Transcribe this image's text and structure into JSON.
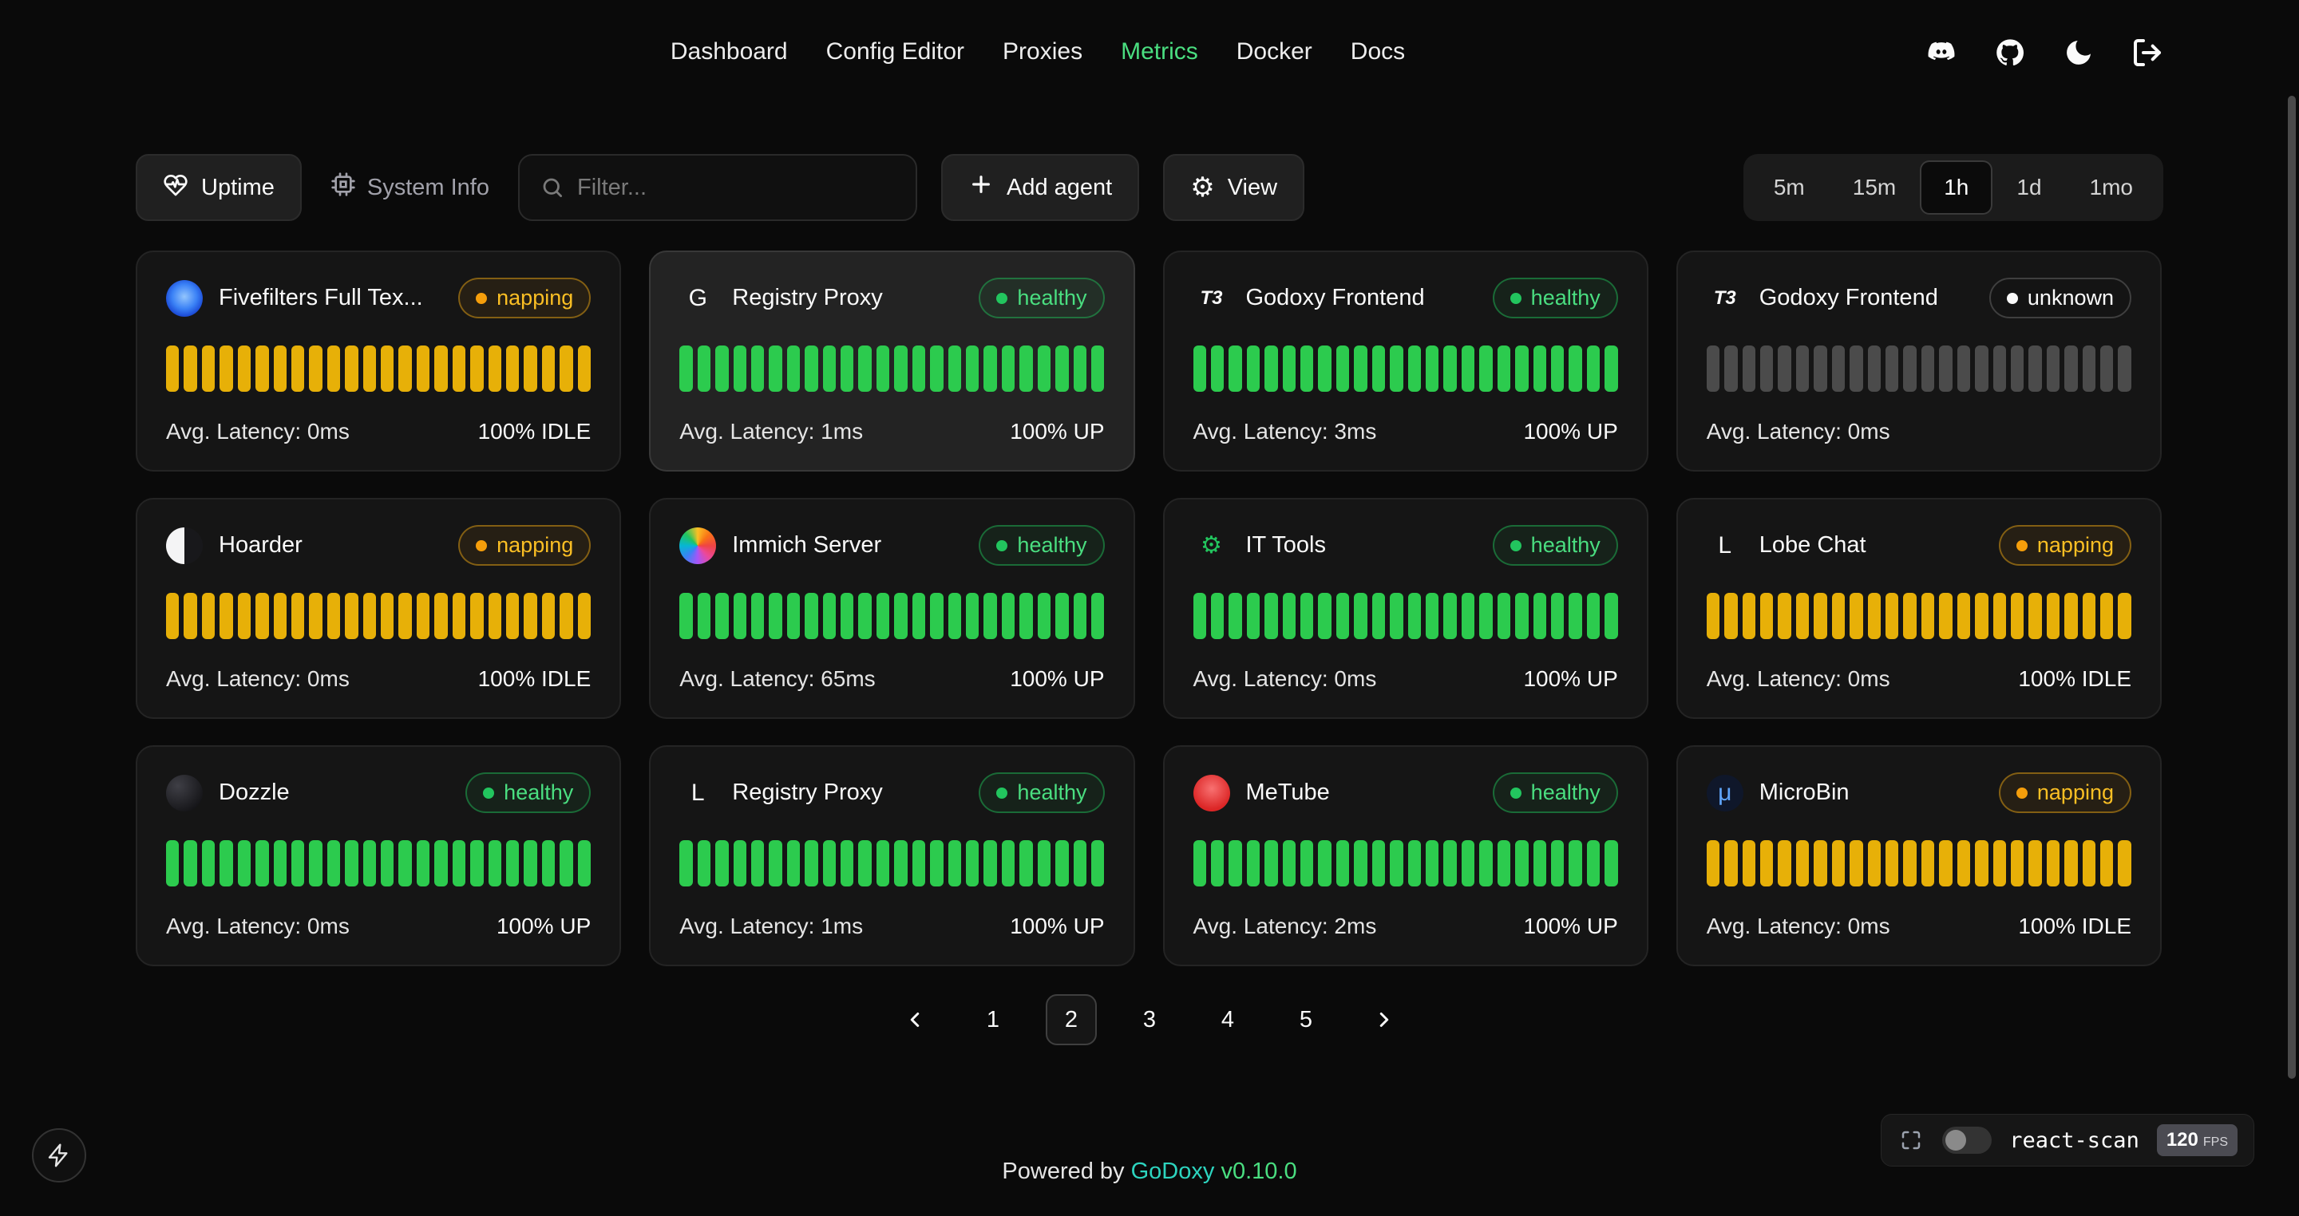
{
  "header": {
    "nav": [
      {
        "label": "Dashboard",
        "active": false
      },
      {
        "label": "Config Editor",
        "active": false
      },
      {
        "label": "Proxies",
        "active": false
      },
      {
        "label": "Metrics",
        "active": true
      },
      {
        "label": "Docker",
        "active": false
      },
      {
        "label": "Docs",
        "active": false
      }
    ]
  },
  "toolbar": {
    "uptime": "Uptime",
    "system_info": "System Info",
    "filter_placeholder": "Filter...",
    "add_agent": "Add agent",
    "view": "View",
    "time_ranges": [
      {
        "label": "5m",
        "active": false
      },
      {
        "label": "15m",
        "active": false
      },
      {
        "label": "1h",
        "active": true
      },
      {
        "label": "1d",
        "active": false
      },
      {
        "label": "1mo",
        "active": false
      }
    ]
  },
  "bar_count": 24,
  "cards": [
    {
      "name": "Fivefilters Full Tex...",
      "icon": {
        "name": "fivefilters-icon",
        "style": "radial-gradient(circle at 50% 45%, #93c5fd 0%, #3b82f6 45%, #1d4ed8 70%, #172554 100%)"
      },
      "status": "napping",
      "status_class": "napping",
      "latency": "Avg. Latency: 0ms",
      "uptime": "100% IDLE",
      "bar_color": "#e7b008",
      "highlight": false
    },
    {
      "name": "Registry Proxy",
      "icon": {
        "name": "registry-proxy-icon",
        "glyph": "G"
      },
      "status": "healthy",
      "status_class": "healthy",
      "latency": "Avg. Latency: 1ms",
      "uptime": "100% UP",
      "bar_color": "#2ccb4e",
      "highlight": true
    },
    {
      "name": "Godoxy Frontend",
      "icon": {
        "name": "godoxy-frontend-icon",
        "glyph": "T3",
        "small": true
      },
      "status": "healthy",
      "status_class": "healthy",
      "latency": "Avg. Latency: 3ms",
      "uptime": "100% UP",
      "bar_color": "#2ccb4e",
      "highlight": false
    },
    {
      "name": "Godoxy Frontend",
      "icon": {
        "name": "godoxy-frontend-icon",
        "glyph": "T3",
        "small": true
      },
      "status": "unknown",
      "status_class": "unknown",
      "latency": "Avg. Latency: 0ms",
      "uptime": "",
      "bar_color": "#4b4b4b",
      "highlight": false
    },
    {
      "name": "Hoarder",
      "icon": {
        "name": "hoarder-icon",
        "style": "linear-gradient(90deg, #f4f4f5 50%, #18181b 50%)"
      },
      "status": "napping",
      "status_class": "napping",
      "latency": "Avg. Latency: 0ms",
      "uptime": "100% IDLE",
      "bar_color": "#e7b008",
      "highlight": false
    },
    {
      "name": "Immich Server",
      "icon": {
        "name": "immich-icon",
        "style": "conic-gradient(#fbbf24, #f97316, #ef4444, #ec4899, #a855f7, #3b82f6, #06b6d4, #22c55e, #fbbf24)"
      },
      "status": "healthy",
      "status_class": "healthy",
      "latency": "Avg. Latency: 65ms",
      "uptime": "100% UP",
      "bar_color": "#2ccb4e",
      "highlight": false
    },
    {
      "name": "IT Tools",
      "icon": {
        "name": "it-tools-icon",
        "glyph": "⚙",
        "color": "#22c55e"
      },
      "status": "healthy",
      "status_class": "healthy",
      "latency": "Avg. Latency: 0ms",
      "uptime": "100% UP",
      "bar_color": "#2ccb4e",
      "highlight": false
    },
    {
      "name": "Lobe Chat",
      "icon": {
        "name": "lobe-chat-icon",
        "glyph": "L"
      },
      "status": "napping",
      "status_class": "napping",
      "latency": "Avg. Latency: 0ms",
      "uptime": "100% IDLE",
      "bar_color": "#e7b008",
      "highlight": false
    },
    {
      "name": "Dozzle",
      "icon": {
        "name": "dozzle-icon",
        "style": "radial-gradient(circle at 32% 30%, #3f3f46, #09090b)"
      },
      "status": "healthy",
      "status_class": "healthy",
      "latency": "Avg. Latency: 0ms",
      "uptime": "100% UP",
      "bar_color": "#2ccb4e",
      "highlight": false
    },
    {
      "name": "Registry Proxy",
      "icon": {
        "name": "registry-proxy-icon",
        "glyph": "L"
      },
      "status": "healthy",
      "status_class": "healthy",
      "latency": "Avg. Latency: 1ms",
      "uptime": "100% UP",
      "bar_color": "#2ccb4e",
      "highlight": false
    },
    {
      "name": "MeTube",
      "icon": {
        "name": "metube-icon",
        "style": "radial-gradient(circle at 50% 38%, #f87171, #dc2626 70%)"
      },
      "status": "healthy",
      "status_class": "healthy",
      "latency": "Avg. Latency: 2ms",
      "uptime": "100% UP",
      "bar_color": "#2ccb4e",
      "highlight": false
    },
    {
      "name": "MicroBin",
      "icon": {
        "name": "microbin-icon",
        "glyph": "μ",
        "color": "#60a5fa",
        "style": "#0f172a"
      },
      "status": "napping",
      "status_class": "napping",
      "latency": "Avg. Latency: 0ms",
      "uptime": "100% IDLE",
      "bar_color": "#e7b008",
      "highlight": false
    }
  ],
  "pagination": {
    "pages": [
      "1",
      "2",
      "3",
      "4",
      "5"
    ],
    "active": "2"
  },
  "footer": {
    "powered_by": "Powered by",
    "brand": "GoDoxy",
    "version": "v0.10.0"
  },
  "react_scan": {
    "label": "react-scan",
    "fps_value": "120",
    "fps_unit": "FPS"
  }
}
